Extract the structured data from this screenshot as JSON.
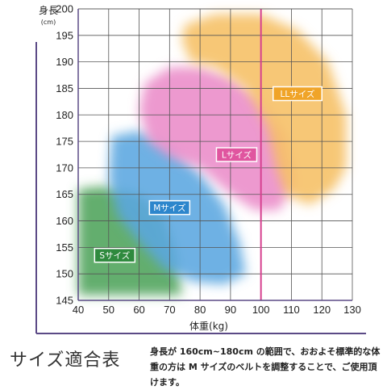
{
  "chart_data": {
    "type": "area",
    "xlabel": "体重(kg)",
    "ylabel": "身長",
    "ylabel_unit": "(cm)",
    "xlim": [
      40,
      130
    ],
    "ylim": [
      145,
      200
    ],
    "xticks": [
      "40",
      "50",
      "60",
      "70",
      "80",
      "90",
      "100",
      "110",
      "120",
      "130"
    ],
    "yticks": [
      "145",
      "150",
      "155",
      "160",
      "165",
      "170",
      "175",
      "180",
      "185",
      "190",
      "195",
      "200"
    ],
    "grid": true,
    "reference_line": {
      "x": 100,
      "color": "#d6408f"
    },
    "zones": [
      {
        "name": "Sサイズ",
        "color": "#4fa35a",
        "label_at": [
          52,
          153.5
        ],
        "polygon": [
          [
            40,
            166
          ],
          [
            48,
            166.5
          ],
          [
            60,
            165
          ],
          [
            68,
            161
          ],
          [
            72,
            154
          ],
          [
            74,
            146
          ],
          [
            40,
            146
          ]
        ]
      },
      {
        "name": "Mサイズ",
        "color": "#5aa6e0",
        "label_at": [
          70,
          162.5
        ],
        "polygon": [
          [
            51,
            176
          ],
          [
            60,
            177
          ],
          [
            70,
            174
          ],
          [
            80,
            169
          ],
          [
            88,
            163
          ],
          [
            93,
            156
          ],
          [
            95,
            150
          ],
          [
            88,
            148
          ],
          [
            78,
            148.5
          ],
          [
            68,
            151
          ],
          [
            60,
            156
          ],
          [
            53,
            161
          ],
          [
            50,
            168
          ]
        ]
      },
      {
        "name": "Lサイズ",
        "color": "#ea8bc8",
        "label_at": [
          92,
          172.5
        ],
        "polygon": [
          [
            62,
            186
          ],
          [
            70,
            189
          ],
          [
            80,
            189
          ],
          [
            90,
            187
          ],
          [
            100,
            183
          ],
          [
            108,
            176
          ],
          [
            111,
            167
          ],
          [
            106,
            162
          ],
          [
            98,
            162
          ],
          [
            90,
            165
          ],
          [
            80,
            170
          ],
          [
            70,
            172
          ],
          [
            63,
            175
          ],
          [
            60,
            181
          ]
        ]
      },
      {
        "name": "LLサイズ",
        "color": "#f6bf63",
        "label_at": [
          112,
          184
        ],
        "polygon": [
          [
            75,
            197
          ],
          [
            85,
            199
          ],
          [
            100,
            199
          ],
          [
            112,
            196
          ],
          [
            122,
            190
          ],
          [
            128,
            180
          ],
          [
            128,
            170
          ],
          [
            124,
            166
          ],
          [
            116,
            163
          ],
          [
            108,
            165
          ],
          [
            105,
            170
          ],
          [
            102,
            178
          ],
          [
            95,
            185
          ],
          [
            85,
            189
          ],
          [
            77,
            190
          ],
          [
            74,
            194
          ]
        ]
      }
    ]
  },
  "footer": {
    "title": "サイズ適合表",
    "note": "身長が 160cm~180cm の範囲で、おおよそ標準的な体重の方は M サイズのベルトを調整することで、ご使用頂けます。"
  }
}
